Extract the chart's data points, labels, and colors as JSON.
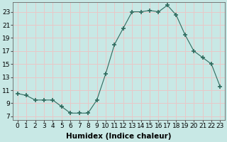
{
  "x": [
    0,
    1,
    2,
    3,
    4,
    5,
    6,
    7,
    8,
    9,
    10,
    11,
    12,
    13,
    14,
    15,
    16,
    17,
    18,
    19,
    20,
    21,
    22,
    23
  ],
  "y": [
    10.5,
    10.2,
    9.5,
    9.5,
    9.5,
    8.5,
    7.5,
    7.5,
    7.5,
    9.5,
    13.5,
    18.0,
    20.5,
    23.0,
    23.0,
    23.2,
    23.0,
    24.0,
    22.5,
    19.5,
    17.0,
    16.0,
    15.0,
    11.5
  ],
  "line_color": "#2e6b5e",
  "marker": "+",
  "marker_size": 4,
  "bg_color": "#c8e8e5",
  "grid_color_major": "#e8c8c8",
  "grid_color_minor": "#e8c8c8",
  "xlabel": "Humidex (Indice chaleur)",
  "xlim": [
    -0.5,
    23.5
  ],
  "ylim": [
    6.5,
    24.5
  ],
  "yticks": [
    7,
    9,
    11,
    13,
    15,
    17,
    19,
    21,
    23
  ],
  "xticks": [
    0,
    1,
    2,
    3,
    4,
    5,
    6,
    7,
    8,
    9,
    10,
    11,
    12,
    13,
    14,
    15,
    16,
    17,
    18,
    19,
    20,
    21,
    22,
    23
  ],
  "xtick_labels": [
    "0",
    "1",
    "2",
    "3",
    "4",
    "5",
    "6",
    "7",
    "8",
    "9",
    "10",
    "11",
    "12",
    "13",
    "14",
    "15",
    "16",
    "17",
    "18",
    "19",
    "20",
    "21",
    "22",
    "23"
  ],
  "xlabel_fontsize": 7.5,
  "tick_fontsize": 6.5
}
